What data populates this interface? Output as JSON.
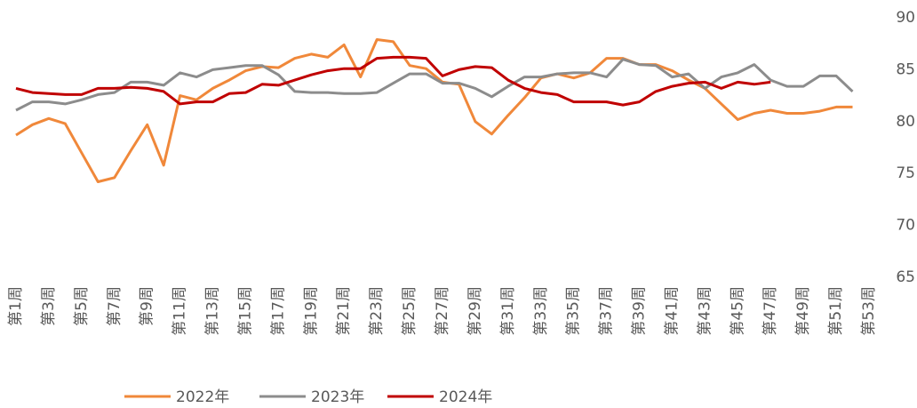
{
  "chart_data": {
    "type": "line",
    "categories": [
      "第1周",
      null,
      "第3周",
      null,
      "第5周",
      null,
      "第7周",
      null,
      "第9周",
      null,
      "第11周",
      null,
      "第13周",
      null,
      "第15周",
      null,
      "第17周",
      null,
      "第19周",
      null,
      "第21周",
      null,
      "第23周",
      null,
      "第25周",
      null,
      "第27周",
      null,
      "第29周",
      null,
      "第31周",
      null,
      "第33周",
      null,
      "第35周",
      null,
      "第37周",
      null,
      "第39周",
      null,
      "第41周",
      null,
      "第43周",
      null,
      "第45周",
      null,
      "第47周",
      null,
      "第49周",
      null,
      "第51周",
      null,
      "第53周"
    ],
    "series": [
      {
        "name": "2022年",
        "color": "#f0883a",
        "values": [
          78.7,
          79.7,
          80.3,
          79.8,
          77.0,
          74.2,
          74.6,
          77.2,
          79.7,
          75.8,
          82.5,
          82.1,
          83.2,
          84.0,
          84.9,
          85.3,
          85.2,
          86.1,
          86.5,
          86.2,
          87.4,
          84.3,
          87.9,
          87.7,
          85.4,
          85.1,
          83.8,
          83.6,
          80.0,
          78.8,
          80.6,
          82.3,
          84.2,
          84.6,
          84.2,
          84.7,
          86.1,
          86.1,
          85.5,
          85.5,
          84.9,
          84.0,
          83.2,
          81.7,
          80.2,
          80.8,
          81.1,
          80.8,
          80.8,
          81.0,
          81.4,
          81.4,
          null
        ]
      },
      {
        "name": "2023年",
        "color": "#8c8c8c",
        "values": [
          81.1,
          81.9,
          81.9,
          81.7,
          82.1,
          82.6,
          82.8,
          83.8,
          83.8,
          83.5,
          84.7,
          84.3,
          85.0,
          85.2,
          85.4,
          85.4,
          84.5,
          82.9,
          82.8,
          82.8,
          82.7,
          82.7,
          82.8,
          83.7,
          84.6,
          84.6,
          83.7,
          83.7,
          83.2,
          82.4,
          83.4,
          84.3,
          84.3,
          84.6,
          84.7,
          84.7,
          84.3,
          86.0,
          85.5,
          85.4,
          84.3,
          84.6,
          83.2,
          84.3,
          84.7,
          85.5,
          84.0,
          83.4,
          83.4,
          84.4,
          84.4,
          82.9,
          null
        ]
      },
      {
        "name": "2024年",
        "color": "#c00000",
        "values": [
          83.2,
          82.8,
          82.7,
          82.6,
          82.6,
          83.2,
          83.2,
          83.3,
          83.2,
          82.9,
          81.7,
          81.9,
          81.9,
          82.7,
          82.8,
          83.6,
          83.5,
          84.0,
          84.5,
          84.9,
          85.1,
          85.1,
          86.1,
          86.2,
          86.2,
          86.1,
          84.4,
          85.0,
          85.3,
          85.2,
          84.0,
          83.2,
          82.8,
          82.6,
          81.9,
          81.9,
          81.9,
          81.6,
          81.9,
          82.9,
          83.4,
          83.7,
          83.8,
          83.2,
          83.8,
          83.6,
          83.8,
          null,
          null,
          null,
          null,
          null,
          null
        ]
      }
    ],
    "ylim": [
      65,
      90
    ],
    "yticks": [
      65,
      70,
      75,
      80,
      85,
      90
    ],
    "legend": "bottom"
  }
}
